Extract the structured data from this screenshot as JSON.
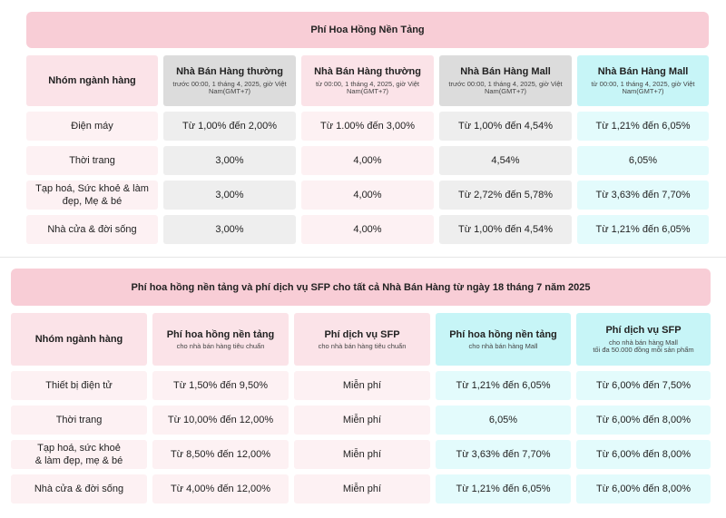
{
  "table1": {
    "title": "Phí Hoa Hồng Nền Tảng",
    "headers": [
      {
        "main": "Nhóm ngành hàng",
        "sub": ""
      },
      {
        "main": "Nhà Bán Hàng thường",
        "sub": "trước 00:00, 1 tháng 4, 2025, giờ Việt Nam(GMT+7)"
      },
      {
        "main": "Nhà Bán Hàng thường",
        "sub": "từ 00:00, 1 tháng 4, 2025, giờ Việt Nam(GMT+7)"
      },
      {
        "main": "Nhà Bán Hàng Mall",
        "sub": "trước 00:00, 1 tháng 4, 2025, giờ Việt Nam(GMT+7)"
      },
      {
        "main": "Nhà Bán Hàng Mall",
        "sub": "từ 00:00, 1 tháng 4, 2025, giờ Việt Nam(GMT+7)"
      }
    ],
    "rows": [
      [
        "Điện máy",
        "Từ 1,00% đến 2,00%",
        "Từ 1.00% đến 3,00%",
        "Từ 1,00% đến 4,54%",
        "Từ 1,21% đến 6,05%"
      ],
      [
        "Thời trang",
        "3,00%",
        "4,00%",
        "4,54%",
        "6,05%"
      ],
      [
        "Tạp hoá, Sức khoẻ & làm đẹp, Mẹ & bé",
        "3,00%",
        "4,00%",
        "Từ 2,72% đến 5,78%",
        "Từ 3,63% đến 7,70%"
      ],
      [
        "Nhà cửa & đời sống",
        "3,00%",
        "4,00%",
        "Từ 1,00% đến 4,54%",
        "Từ 1,21% đến 6,05%"
      ]
    ]
  },
  "table2": {
    "title": "Phí hoa hồng nền tảng và phí dịch vụ SFP cho tất cả Nhà Bán Hàng từ ngày 18 tháng 7 năm 2025",
    "headers": [
      {
        "main": "Nhóm ngành hàng",
        "sub": ""
      },
      {
        "main": "Phí hoa hồng nền tảng",
        "sub": "cho nhà bán hàng tiêu chuẩn"
      },
      {
        "main": "Phí dịch vụ SFP",
        "sub": "cho nhà bán hàng tiêu chuẩn"
      },
      {
        "main": "Phí hoa hồng nền tảng",
        "sub": "cho nhà bán hàng Mall"
      },
      {
        "main": "Phí dịch vụ SFP",
        "sub": "cho nhà bán hàng Mall\ntối đa 50.000 đồng mỗi sản phẩm"
      }
    ],
    "rows": [
      [
        "Thiết bị điện tử",
        "Từ 1,50% đến 9,50%",
        "Miễn phí",
        "Từ 1,21% đến 6,05%",
        "Từ 6,00% đến 7,50%"
      ],
      [
        "Thời trang",
        "Từ 10,00% đến 12,00%",
        "Miễn phí",
        "6,05%",
        "Từ 6,00% đến 8,00%"
      ],
      [
        "Tạp hoá, sức khoẻ\n& làm đẹp, mẹ & bé",
        "Từ 8,50% đến 12,00%",
        "Miễn phí",
        "Từ 3,63% đến 7,70%",
        "Từ 6,00% đến 8,00%"
      ],
      [
        "Nhà cửa & đời sống",
        "Từ 4,00% đến 12,00%",
        "Miễn phí",
        "Từ 1,21% đến 6,05%",
        "Từ 6,00% đến 8,00%"
      ]
    ]
  },
  "colors": {
    "banner": "#f8cdd6",
    "category_header": "#fbe3e8",
    "category_cell": "#fdf1f3",
    "gray_header": "#dcdcdc",
    "gray_cell": "#eeeeee",
    "cyan_header": "#c7f5f7",
    "cyan_cell": "#e3fbfc"
  }
}
